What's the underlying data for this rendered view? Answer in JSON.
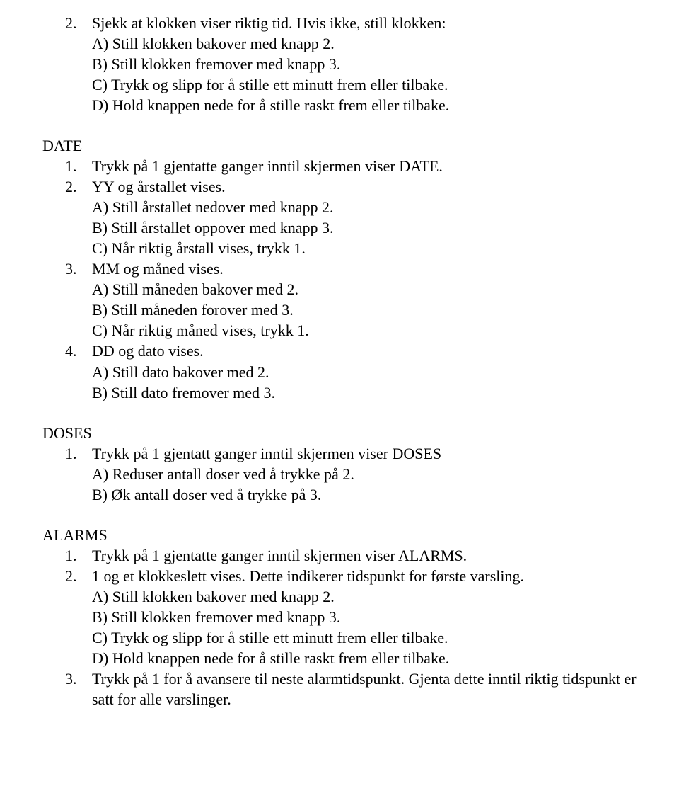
{
  "intro": {
    "num": "2.",
    "line1": "Sjekk at klokken viser riktig tid. Hvis ikke, still klokken:",
    "a": "A) Still klokken bakover med knapp 2.",
    "b": "B) Still klokken fremover med knapp 3.",
    "c": "C) Trykk og slipp for å stille ett minutt frem eller tilbake.",
    "d": "D) Hold knappen nede for å stille raskt frem eller tilbake."
  },
  "date": {
    "heading": "DATE",
    "i1": {
      "num": "1.",
      "text": "Trykk på 1 gjentatte ganger inntil skjermen viser DATE."
    },
    "i2": {
      "num": "2.",
      "text": "YY og årstallet vises.",
      "a": "A) Still årstallet nedover med knapp 2.",
      "b": "B) Still årstallet oppover med knapp 3.",
      "c": "C) Når riktig årstall vises, trykk 1."
    },
    "i3": {
      "num": "3.",
      "text": "MM og måned vises.",
      "a": "A) Still måneden bakover med 2.",
      "b": "B) Still måneden forover med 3.",
      "c": "C) Når riktig måned vises, trykk 1."
    },
    "i4": {
      "num": "4.",
      "text": "DD og dato vises.",
      "a": "A) Still dato bakover med 2.",
      "b": "B) Still dato fremover med 3."
    }
  },
  "doses": {
    "heading": "DOSES",
    "i1": {
      "num": "1.",
      "text": "Trykk på 1 gjentatt ganger inntil skjermen viser DOSES",
      "a": "A) Reduser antall doser ved å trykke på 2.",
      "b": "B) Øk antall doser ved å trykke på 3."
    }
  },
  "alarms": {
    "heading": "ALARMS",
    "i1": {
      "num": "1.",
      "text": "Trykk på 1 gjentatte ganger inntil skjermen viser ALARMS."
    },
    "i2": {
      "num": "2.",
      "text": "1 og et klokkeslett vises. Dette indikerer tidspunkt for første varsling.",
      "a": "A) Still klokken bakover med knapp 2.",
      "b": "B) Still klokken fremover med knapp 3.",
      "c": "C) Trykk og slipp for å stille ett minutt frem eller tilbake.",
      "d": "D) Hold knappen nede for å stille raskt frem eller tilbake."
    },
    "i3": {
      "num": "3.",
      "text": "Trykk på 1 for å avansere til neste alarmtidspunkt. Gjenta dette inntil riktig tidspunkt er satt for alle varslinger."
    }
  }
}
